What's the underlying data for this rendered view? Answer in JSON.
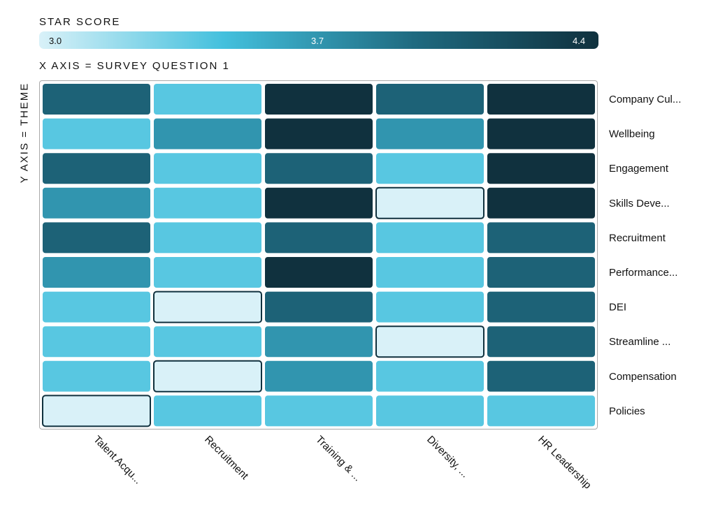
{
  "legend": {
    "title": "STAR SCORE",
    "min_label": "3.0",
    "mid_label": "3.7",
    "max_label": "4.4",
    "color_stops": [
      "#d9f1f8",
      "#43c0dd",
      "#1f6a80",
      "#10313e"
    ]
  },
  "xaxis_title": "X AXIS = SURVEY QUESTION 1",
  "yaxis_title": "Y AXIS = THEME",
  "chart_data": {
    "type": "heatmap",
    "title": "STAR SCORE",
    "xlabel": "X AXIS = SURVEY QUESTION 1",
    "ylabel": "Y AXIS = THEME",
    "value_range": [
      3.0,
      4.4
    ],
    "columns": [
      "Talent Acqu...",
      "Recruitment",
      "Training & ...",
      "Diversity, ...",
      "HR Leadership"
    ],
    "rows": [
      "Company Cul...",
      "Wellbeing",
      "Engagement",
      "Skills Deve...",
      "Recruitment",
      "Performance...",
      "DEI",
      "Streamline ...",
      "Compensation",
      "Policies"
    ],
    "values": [
      [
        4.0,
        3.4,
        4.4,
        4.0,
        4.4
      ],
      [
        3.4,
        3.7,
        4.4,
        3.7,
        4.4
      ],
      [
        4.0,
        3.4,
        4.0,
        3.4,
        4.4
      ],
      [
        3.7,
        3.4,
        4.4,
        3.0,
        4.4
      ],
      [
        4.0,
        3.4,
        4.0,
        3.4,
        4.0
      ],
      [
        3.7,
        3.4,
        4.4,
        3.4,
        4.0
      ],
      [
        3.4,
        3.0,
        4.0,
        3.4,
        4.0
      ],
      [
        3.4,
        3.4,
        3.7,
        3.0,
        4.0
      ],
      [
        3.4,
        3.0,
        3.7,
        3.4,
        4.0
      ],
      [
        3.0,
        3.4,
        3.4,
        3.4,
        3.4
      ]
    ],
    "outline_color": "#10313e"
  }
}
